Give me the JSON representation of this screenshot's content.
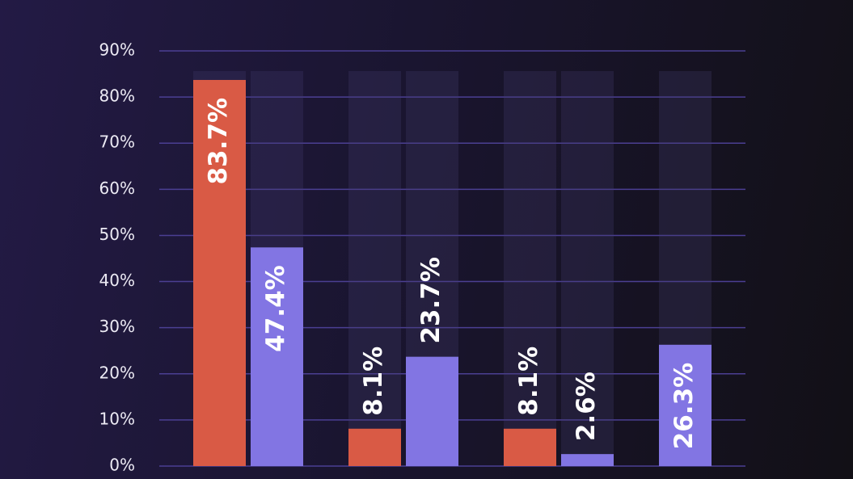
{
  "chart_data": {
    "type": "bar",
    "categories": [
      null,
      null,
      null,
      null
    ],
    "series": [
      {
        "color": "#d95a45",
        "values": [
          83.7,
          8.1,
          8.1,
          null
        ],
        "value_labels": [
          "83.7%",
          "8.1%",
          "8.1%",
          null
        ]
      },
      {
        "color": "#8275e3",
        "values": [
          47.4,
          23.7,
          2.6,
          26.3
        ],
        "value_labels": [
          "47.4%",
          "23.7%",
          "2.6%",
          "26.3%"
        ]
      }
    ],
    "ylim": [
      0,
      90
    ],
    "yticks": [
      {
        "value": 0,
        "label": "0%"
      },
      {
        "value": 10,
        "label": "10%"
      },
      {
        "value": 20,
        "label": "20%"
      },
      {
        "value": 30,
        "label": "30%"
      },
      {
        "value": 40,
        "label": "40%"
      },
      {
        "value": 50,
        "label": "50%"
      },
      {
        "value": 60,
        "label": "60%"
      },
      {
        "value": 70,
        "label": "70%"
      },
      {
        "value": 80,
        "label": "80%"
      },
      {
        "value": 90,
        "label": "90%"
      }
    ],
    "grid": true
  }
}
